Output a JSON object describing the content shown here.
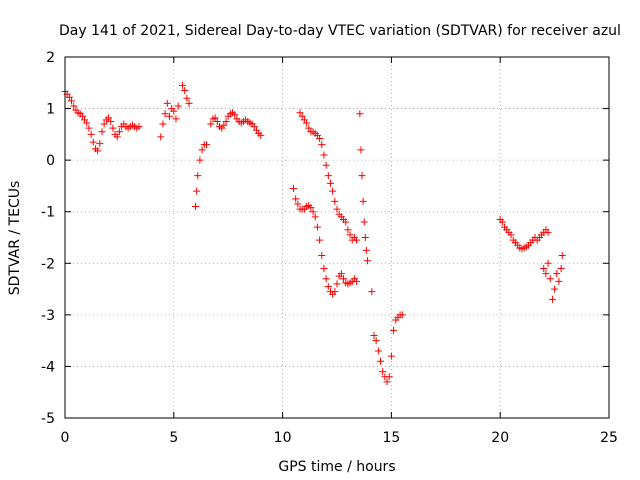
{
  "chart_data": {
    "type": "scatter",
    "title": "Day 141 of 2021, Sidereal Day-to-day VTEC variation (SDTVAR) for receiver azul",
    "xlabel": "GPS time / hours",
    "ylabel": "SDTVAR / TECUs",
    "xlim": [
      0,
      25
    ],
    "ylim": [
      -5,
      2
    ],
    "xticks": [
      0,
      5,
      10,
      15,
      20,
      25
    ],
    "yticks": [
      -5,
      -4,
      -3,
      -2,
      -1,
      0,
      1,
      2
    ],
    "grid": true,
    "marker": "+",
    "color": "#ff0000",
    "series": [
      {
        "name": "SDTVAR",
        "segments": [
          {
            "x": [
              0.0,
              0.1,
              0.2,
              0.3,
              0.4,
              0.5,
              0.6,
              0.7,
              0.8,
              0.9,
              1.0,
              1.1,
              1.2,
              1.3,
              1.4,
              1.5,
              1.6,
              1.7,
              1.8,
              1.9,
              2.0,
              2.1,
              2.2,
              2.3,
              2.4,
              2.5,
              2.6,
              2.7,
              2.8,
              2.9,
              3.0,
              3.1,
              3.2,
              3.3,
              3.4
            ],
            "y": [
              1.33,
              1.28,
              1.22,
              1.15,
              1.05,
              0.97,
              0.92,
              0.9,
              0.85,
              0.78,
              0.72,
              0.62,
              0.5,
              0.35,
              0.22,
              0.18,
              0.32,
              0.55,
              0.7,
              0.78,
              0.82,
              0.75,
              0.62,
              0.5,
              0.45,
              0.55,
              0.65,
              0.7,
              0.65,
              0.62,
              0.65,
              0.68,
              0.65,
              0.62,
              0.65
            ]
          },
          {
            "x": [
              4.4,
              4.5,
              4.6,
              4.7,
              4.8,
              4.9,
              5.0,
              5.1,
              5.2
            ],
            "y": [
              0.45,
              0.7,
              0.9,
              1.1,
              0.85,
              1.0,
              0.95,
              0.8,
              1.05
            ]
          },
          {
            "x": [
              5.4,
              5.5,
              5.6,
              5.7
            ],
            "y": [
              1.45,
              1.35,
              1.2,
              1.1
            ]
          },
          {
            "x": [
              6.0,
              6.05,
              6.1,
              6.2,
              6.3,
              6.4,
              6.5
            ],
            "y": [
              -0.9,
              -0.6,
              -0.3,
              0.0,
              0.2,
              0.3,
              0.3
            ]
          },
          {
            "x": [
              6.7,
              6.8,
              6.9,
              7.0,
              7.1,
              7.2,
              7.3,
              7.4,
              7.5,
              7.6,
              7.7,
              7.8,
              7.9,
              8.0,
              8.1,
              8.2,
              8.3,
              8.4,
              8.5,
              8.6,
              8.7,
              8.8,
              8.9,
              9.0
            ],
            "y": [
              0.7,
              0.8,
              0.82,
              0.75,
              0.65,
              0.62,
              0.68,
              0.75,
              0.85,
              0.9,
              0.92,
              0.88,
              0.8,
              0.75,
              0.72,
              0.75,
              0.78,
              0.75,
              0.72,
              0.7,
              0.65,
              0.58,
              0.52,
              0.48
            ]
          },
          {
            "x": [
              10.5,
              10.6,
              10.7,
              10.8,
              10.9,
              11.0,
              11.1,
              11.2,
              11.3,
              11.4,
              11.5,
              11.6,
              11.7,
              11.8,
              11.9,
              12.0,
              12.1,
              12.2,
              12.3,
              12.4,
              12.5,
              12.6,
              12.7,
              12.8,
              12.9,
              13.0,
              13.1,
              13.2,
              13.3,
              13.4
            ],
            "y": [
              -0.55,
              -0.75,
              -0.85,
              -0.95,
              -0.95,
              -0.95,
              -0.9,
              -0.88,
              -0.92,
              -1.0,
              -1.1,
              -1.3,
              -1.55,
              -1.85,
              -2.1,
              -2.3,
              -2.45,
              -2.55,
              -2.6,
              -2.55,
              -2.4,
              -2.25,
              -2.2,
              -2.3,
              -2.38,
              -2.4,
              -2.38,
              -2.35,
              -2.3,
              -2.35
            ]
          },
          {
            "x": [
              10.8,
              10.9,
              11.0,
              11.1,
              11.2,
              11.3,
              11.4,
              11.5,
              11.6,
              11.7,
              11.8,
              11.9,
              12.0,
              12.1,
              12.2,
              12.3,
              12.4,
              12.5,
              12.6,
              12.7,
              12.8,
              12.9,
              13.0,
              13.1,
              13.2,
              13.3,
              13.4
            ],
            "y": [
              0.92,
              0.85,
              0.78,
              0.72,
              0.62,
              0.55,
              0.55,
              0.52,
              0.48,
              0.42,
              0.3,
              0.1,
              -0.1,
              -0.3,
              -0.45,
              -0.6,
              -0.8,
              -0.95,
              -1.05,
              -1.1,
              -1.15,
              -1.2,
              -1.35,
              -1.45,
              -1.55,
              -1.5,
              -1.55
            ]
          },
          {
            "x": [
              13.55,
              13.6,
              13.65,
              13.7,
              13.75,
              13.8,
              13.85,
              13.9
            ],
            "y": [
              0.9,
              0.2,
              -0.3,
              -0.8,
              -1.2,
              -1.5,
              -1.75,
              -1.95
            ]
          },
          {
            "x": [
              14.1,
              14.2,
              14.3,
              14.4,
              14.5,
              14.6,
              14.7,
              14.8,
              14.9,
              15.0,
              15.1,
              15.2,
              15.3,
              15.4,
              15.5
            ],
            "y": [
              -2.55,
              -3.4,
              -3.5,
              -3.7,
              -3.9,
              -4.1,
              -4.2,
              -4.3,
              -4.2,
              -3.8,
              -3.3,
              -3.1,
              -3.05,
              -3.0,
              -3.0
            ]
          },
          {
            "x": [
              20.0,
              20.1,
              20.2,
              20.3,
              20.4,
              20.5,
              20.6,
              20.7,
              20.8,
              20.9,
              21.0,
              21.1,
              21.2,
              21.3,
              21.4,
              21.5,
              21.6,
              21.7,
              21.8,
              21.9,
              22.0,
              22.1,
              22.2
            ],
            "y": [
              -1.15,
              -1.2,
              -1.3,
              -1.35,
              -1.4,
              -1.45,
              -1.55,
              -1.6,
              -1.65,
              -1.7,
              -1.72,
              -1.7,
              -1.68,
              -1.65,
              -1.6,
              -1.55,
              -1.5,
              -1.55,
              -1.5,
              -1.45,
              -1.4,
              -1.35,
              -1.4
            ]
          },
          {
            "x": [
              22.0,
              22.1,
              22.2,
              22.3,
              22.4,
              22.5,
              22.6,
              22.7,
              22.8,
              22.85
            ],
            "y": [
              -2.1,
              -2.2,
              -2.0,
              -2.3,
              -2.7,
              -2.5,
              -2.2,
              -2.35,
              -2.1,
              -1.85
            ]
          }
        ]
      }
    ]
  }
}
